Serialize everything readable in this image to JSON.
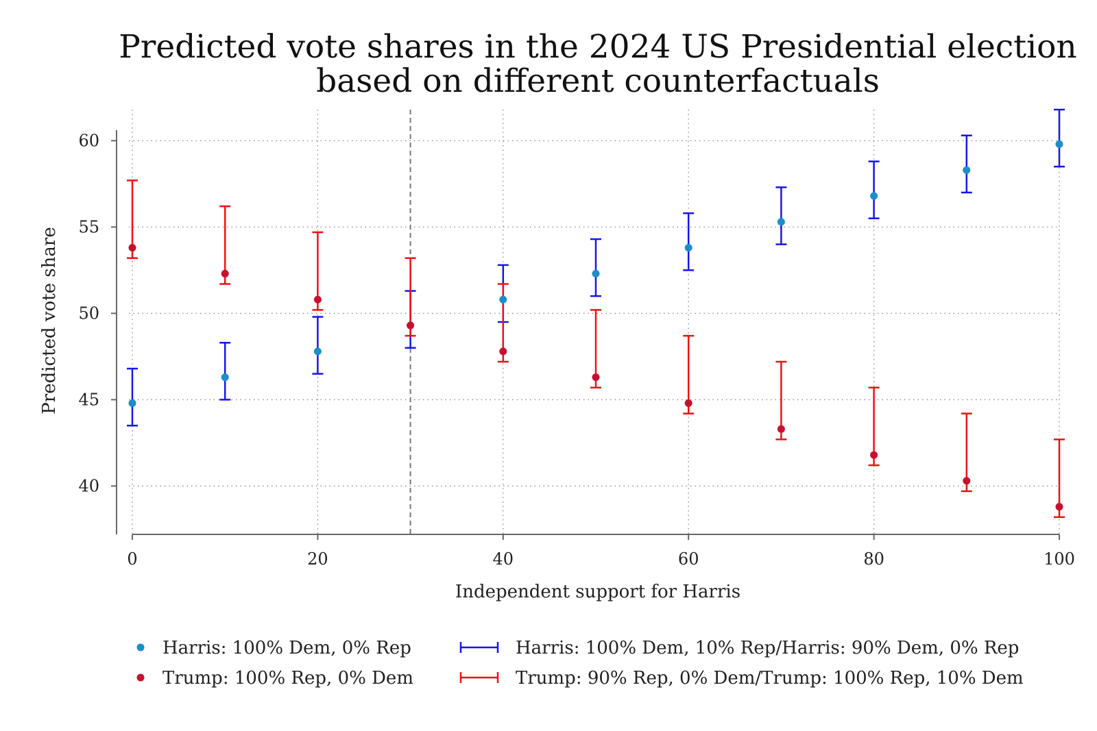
{
  "chart_data": {
    "type": "scatter",
    "title": [
      "Predicted vote shares in the 2024 US Presidential election",
      "based on different counterfactuals"
    ],
    "xlabel": "Independent support for Harris",
    "ylabel": "Predicted vote share",
    "xlim": [
      0,
      100
    ],
    "ylim": [
      37.2,
      61.8
    ],
    "xticks": [
      0,
      20,
      40,
      60,
      80,
      100
    ],
    "yticks": [
      40,
      45,
      50,
      55,
      60
    ],
    "grid": true,
    "reference_line_x": 30,
    "x": [
      0,
      10,
      20,
      30,
      40,
      50,
      60,
      70,
      80,
      90,
      100
    ],
    "series": [
      {
        "name": "Harris: 100% Dem, 0% Rep",
        "kind": "point",
        "color": "#1a8fc9",
        "values": [
          44.8,
          46.3,
          47.8,
          49.3,
          50.8,
          52.3,
          53.8,
          55.3,
          56.8,
          58.3,
          59.8
        ]
      },
      {
        "name": "Trump: 100% Rep, 0% Dem",
        "kind": "point",
        "color": "#c8102e",
        "values": [
          53.8,
          52.3,
          50.8,
          49.3,
          47.8,
          46.3,
          44.8,
          43.3,
          41.8,
          40.3,
          38.8
        ]
      },
      {
        "name": "Harris: 100% Dem, 10% Rep/Harris: 90% Dem, 0% Rep",
        "kind": "errorbar",
        "color": "#1515ee",
        "low": [
          43.5,
          45.0,
          46.5,
          48.0,
          49.5,
          51.0,
          52.5,
          54.0,
          55.5,
          57.0,
          58.5
        ],
        "high": [
          46.8,
          48.3,
          49.8,
          51.3,
          52.8,
          54.3,
          55.8,
          57.3,
          58.8,
          60.3,
          61.8
        ]
      },
      {
        "name": "Trump: 90% Rep, 0% Dem/Trump: 100% Rep, 10% Dem",
        "kind": "errorbar",
        "color": "#ee1111",
        "low": [
          53.2,
          51.7,
          50.2,
          48.7,
          47.2,
          45.7,
          44.2,
          42.7,
          41.2,
          39.7,
          38.2
        ],
        "high": [
          57.7,
          56.2,
          54.7,
          53.2,
          51.7,
          50.2,
          48.7,
          47.2,
          45.7,
          44.2,
          42.7
        ]
      }
    ],
    "legend_position": "bottom"
  }
}
